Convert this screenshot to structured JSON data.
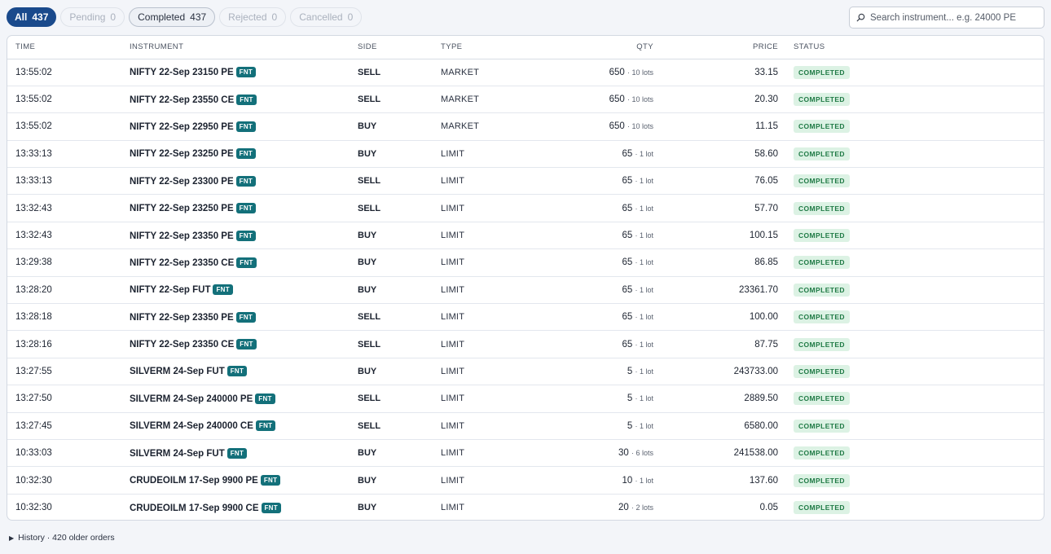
{
  "tabs": [
    {
      "label": "All",
      "count": "437",
      "state": "active"
    },
    {
      "label": "Pending",
      "count": "0",
      "state": "disabled"
    },
    {
      "label": "Completed",
      "count": "437",
      "state": "normal"
    },
    {
      "label": "Rejected",
      "count": "0",
      "state": "disabled"
    },
    {
      "label": "Cancelled",
      "count": "0",
      "state": "disabled"
    }
  ],
  "search": {
    "placeholder": "Search instrument... e.g. 24000 PE",
    "value": "",
    "icon": "search-icon"
  },
  "table": {
    "columns": [
      "TIME",
      "INSTRUMENT",
      "SIDE",
      "TYPE",
      "QTY",
      "PRICE",
      "STATUS"
    ],
    "rows": [
      {
        "time": "13:55:02",
        "instrument": "NIFTY 22-Sep 23150 PE",
        "tag": "FNT",
        "side": "SELL",
        "type": "MARKET",
        "qty": "650",
        "lots": "· 10 lots",
        "price": "33.15",
        "status": "COMPLETED"
      },
      {
        "time": "13:55:02",
        "instrument": "NIFTY 22-Sep 23550 CE",
        "tag": "FNT",
        "side": "SELL",
        "type": "MARKET",
        "qty": "650",
        "lots": "· 10 lots",
        "price": "20.30",
        "status": "COMPLETED"
      },
      {
        "time": "13:55:02",
        "instrument": "NIFTY 22-Sep 22950 PE",
        "tag": "FNT",
        "side": "BUY",
        "type": "MARKET",
        "qty": "650",
        "lots": "· 10 lots",
        "price": "11.15",
        "status": "COMPLETED"
      },
      {
        "time": "13:33:13",
        "instrument": "NIFTY 22-Sep 23250 PE",
        "tag": "FNT",
        "side": "BUY",
        "type": "LIMIT",
        "qty": "65",
        "lots": "· 1 lot",
        "price": "58.60",
        "status": "COMPLETED"
      },
      {
        "time": "13:33:13",
        "instrument": "NIFTY 22-Sep 23300 PE",
        "tag": "FNT",
        "side": "SELL",
        "type": "LIMIT",
        "qty": "65",
        "lots": "· 1 lot",
        "price": "76.05",
        "status": "COMPLETED"
      },
      {
        "time": "13:32:43",
        "instrument": "NIFTY 22-Sep 23250 PE",
        "tag": "FNT",
        "side": "SELL",
        "type": "LIMIT",
        "qty": "65",
        "lots": "· 1 lot",
        "price": "57.70",
        "status": "COMPLETED"
      },
      {
        "time": "13:32:43",
        "instrument": "NIFTY 22-Sep 23350 PE",
        "tag": "FNT",
        "side": "BUY",
        "type": "LIMIT",
        "qty": "65",
        "lots": "· 1 lot",
        "price": "100.15",
        "status": "COMPLETED"
      },
      {
        "time": "13:29:38",
        "instrument": "NIFTY 22-Sep 23350 CE",
        "tag": "FNT",
        "side": "BUY",
        "type": "LIMIT",
        "qty": "65",
        "lots": "· 1 lot",
        "price": "86.85",
        "status": "COMPLETED"
      },
      {
        "time": "13:28:20",
        "instrument": "NIFTY 22-Sep FUT",
        "tag": "FNT",
        "side": "BUY",
        "type": "LIMIT",
        "qty": "65",
        "lots": "· 1 lot",
        "price": "23361.70",
        "status": "COMPLETED"
      },
      {
        "time": "13:28:18",
        "instrument": "NIFTY 22-Sep 23350 PE",
        "tag": "FNT",
        "side": "SELL",
        "type": "LIMIT",
        "qty": "65",
        "lots": "· 1 lot",
        "price": "100.00",
        "status": "COMPLETED"
      },
      {
        "time": "13:28:16",
        "instrument": "NIFTY 22-Sep 23350 CE",
        "tag": "FNT",
        "side": "SELL",
        "type": "LIMIT",
        "qty": "65",
        "lots": "· 1 lot",
        "price": "87.75",
        "status": "COMPLETED"
      },
      {
        "time": "13:27:55",
        "instrument": "SILVERM 24-Sep FUT",
        "tag": "FNT",
        "side": "BUY",
        "type": "LIMIT",
        "qty": "5",
        "lots": "· 1 lot",
        "price": "243733.00",
        "status": "COMPLETED"
      },
      {
        "time": "13:27:50",
        "instrument": "SILVERM 24-Sep 240000 PE",
        "tag": "FNT",
        "side": "SELL",
        "type": "LIMIT",
        "qty": "5",
        "lots": "· 1 lot",
        "price": "2889.50",
        "status": "COMPLETED"
      },
      {
        "time": "13:27:45",
        "instrument": "SILVERM 24-Sep 240000 CE",
        "tag": "FNT",
        "side": "SELL",
        "type": "LIMIT",
        "qty": "5",
        "lots": "· 1 lot",
        "price": "6580.00",
        "status": "COMPLETED"
      },
      {
        "time": "10:33:03",
        "instrument": "SILVERM 24-Sep FUT",
        "tag": "FNT",
        "side": "BUY",
        "type": "LIMIT",
        "qty": "30",
        "lots": "· 6 lots",
        "price": "241538.00",
        "status": "COMPLETED"
      },
      {
        "time": "10:32:30",
        "instrument": "CRUDEOILM 17-Sep 9900 PE",
        "tag": "FNT",
        "side": "BUY",
        "type": "LIMIT",
        "qty": "10",
        "lots": "· 1 lot",
        "price": "137.60",
        "status": "COMPLETED"
      },
      {
        "time": "10:32:30",
        "instrument": "CRUDEOILM 17-Sep 9900 CE",
        "tag": "FNT",
        "side": "BUY",
        "type": "LIMIT",
        "qty": "20",
        "lots": "· 2 lots",
        "price": "0.05",
        "status": "COMPLETED"
      }
    ]
  },
  "history": {
    "icon": "triangle-right-icon",
    "label": "History · 420 older orders"
  },
  "colors": {
    "accent": "#1a4a8c",
    "tag": "#13707a",
    "status_bg": "#dcf2e4",
    "status_fg": "#1f7a45"
  }
}
